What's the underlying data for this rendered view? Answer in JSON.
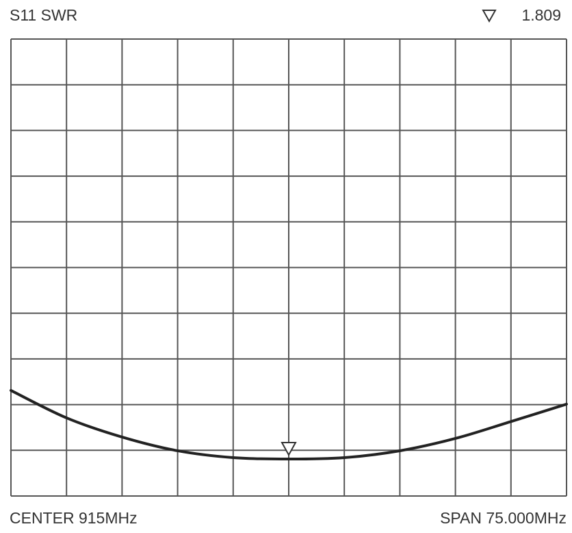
{
  "chart_data": {
    "type": "line",
    "title": "S11 SWR",
    "center_label": "CENTER 915MHz",
    "span_label": "SPAN 75.000MHz",
    "x": [
      877.5,
      885,
      892.5,
      900,
      907.5,
      915,
      922.5,
      930,
      937.5,
      945,
      952.5
    ],
    "series": [
      {
        "name": "S11",
        "color": "#222222",
        "values": [
          3.31,
          2.71,
          2.29,
          1.99,
          1.84,
          1.809,
          1.84,
          1.99,
          2.26,
          2.63,
          3.01
        ]
      }
    ],
    "marker": {
      "x": 915,
      "value": 1.809
    },
    "xlim": [
      877.5,
      952.5
    ],
    "ylim": [
      1,
      11
    ],
    "xticks": [
      877.5,
      885,
      892.5,
      900,
      907.5,
      915,
      922.5,
      930,
      937.5,
      945,
      952.5
    ],
    "yticks": [
      1,
      2,
      3,
      4,
      5,
      6,
      7,
      8,
      9,
      10,
      11
    ],
    "grid": true
  }
}
